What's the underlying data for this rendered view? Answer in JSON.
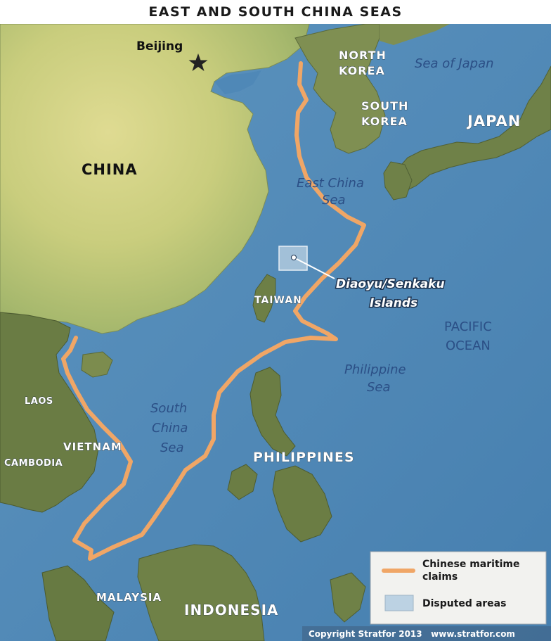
{
  "title": "EAST AND SOUTH CHINA SEAS",
  "city": {
    "name": "Beijing"
  },
  "countries": {
    "china": "CHINA",
    "north_korea_1": "NORTH",
    "north_korea_2": "KOREA",
    "south_korea_1": "SOUTH",
    "south_korea_2": "KOREA",
    "japan": "JAPAN",
    "taiwan": "TAIWAN",
    "laos": "LAOS",
    "vietnam": "VIETNAM",
    "cambodia": "CAMBODIA",
    "philippines": "PHILIPPINES",
    "malaysia": "MALAYSIA",
    "indonesia": "INDONESIA"
  },
  "seas": {
    "sea_of_japan": "Sea of Japan",
    "east_china_1": "East China",
    "east_china_2": "Sea",
    "pacific_1": "PACIFIC",
    "pacific_2": "OCEAN",
    "philippine_1": "Philippine",
    "philippine_2": "Sea",
    "south_china_1": "South",
    "south_china_2": "China",
    "south_china_3": "Sea"
  },
  "callout": {
    "line1": "Diaoyu/Senkaku",
    "line2": "Islands"
  },
  "legend": {
    "claims_line1": "Chinese maritime",
    "claims_line2": "claims",
    "disputed": "Disputed areas"
  },
  "credit": "Copyright Stratfor 2013   www.stratfor.com",
  "colors": {
    "ocean": "#4f88b7",
    "land_green": "#9fb06a",
    "land_yellow": "#d8d68a",
    "land_dark": "#5e6f3c",
    "claim_line": "#f0a666",
    "legend_bg": "#f2f2ef"
  }
}
